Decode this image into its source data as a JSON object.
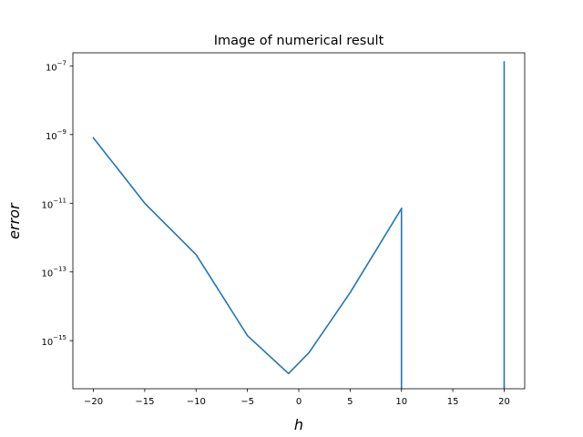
{
  "chart_data": {
    "type": "line",
    "title": "Image of numerical result",
    "xlabel": "h",
    "ylabel": "error",
    "yscale": "log",
    "xlim": [
      -22,
      22
    ],
    "ylim_log10": [
      -16.4,
      -6.62
    ],
    "grid": false,
    "x_ticks": [
      {
        "value": -20,
        "label": "−20"
      },
      {
        "value": -15,
        "label": "−15"
      },
      {
        "value": -10,
        "label": "−10"
      },
      {
        "value": -5,
        "label": "−5"
      },
      {
        "value": 0,
        "label": "0"
      },
      {
        "value": 5,
        "label": "5"
      },
      {
        "value": 10,
        "label": "10"
      },
      {
        "value": 15,
        "label": "15"
      },
      {
        "value": 20,
        "label": "20"
      }
    ],
    "y_ticks": [
      {
        "exponent": -7,
        "base": "10",
        "exp_label": "−7"
      },
      {
        "exponent": -9,
        "base": "10",
        "exp_label": "−9"
      },
      {
        "exponent": -11,
        "base": "10",
        "exp_label": "−11"
      },
      {
        "exponent": -13,
        "base": "10",
        "exp_label": "−13"
      },
      {
        "exponent": -15,
        "base": "10",
        "exp_label": "−15"
      }
    ],
    "series": [
      {
        "color": "#1f77b4",
        "segments": [
          {
            "x": [
              -20,
              -15,
              -10,
              -5,
              -1,
              1,
              5,
              10
            ],
            "y": [
              8e-10,
              1e-11,
              3.2e-13,
              1.4e-15,
              1.1e-16,
              4.5e-16,
              2.5e-14,
              7e-12
            ]
          },
          {
            "x": [
              10,
              10
            ],
            "y": [
              7e-12,
              1e-17
            ]
          },
          {
            "x": [
              20,
              20
            ],
            "y": [
              1e-17,
              1.3e-07
            ]
          }
        ]
      }
    ]
  }
}
